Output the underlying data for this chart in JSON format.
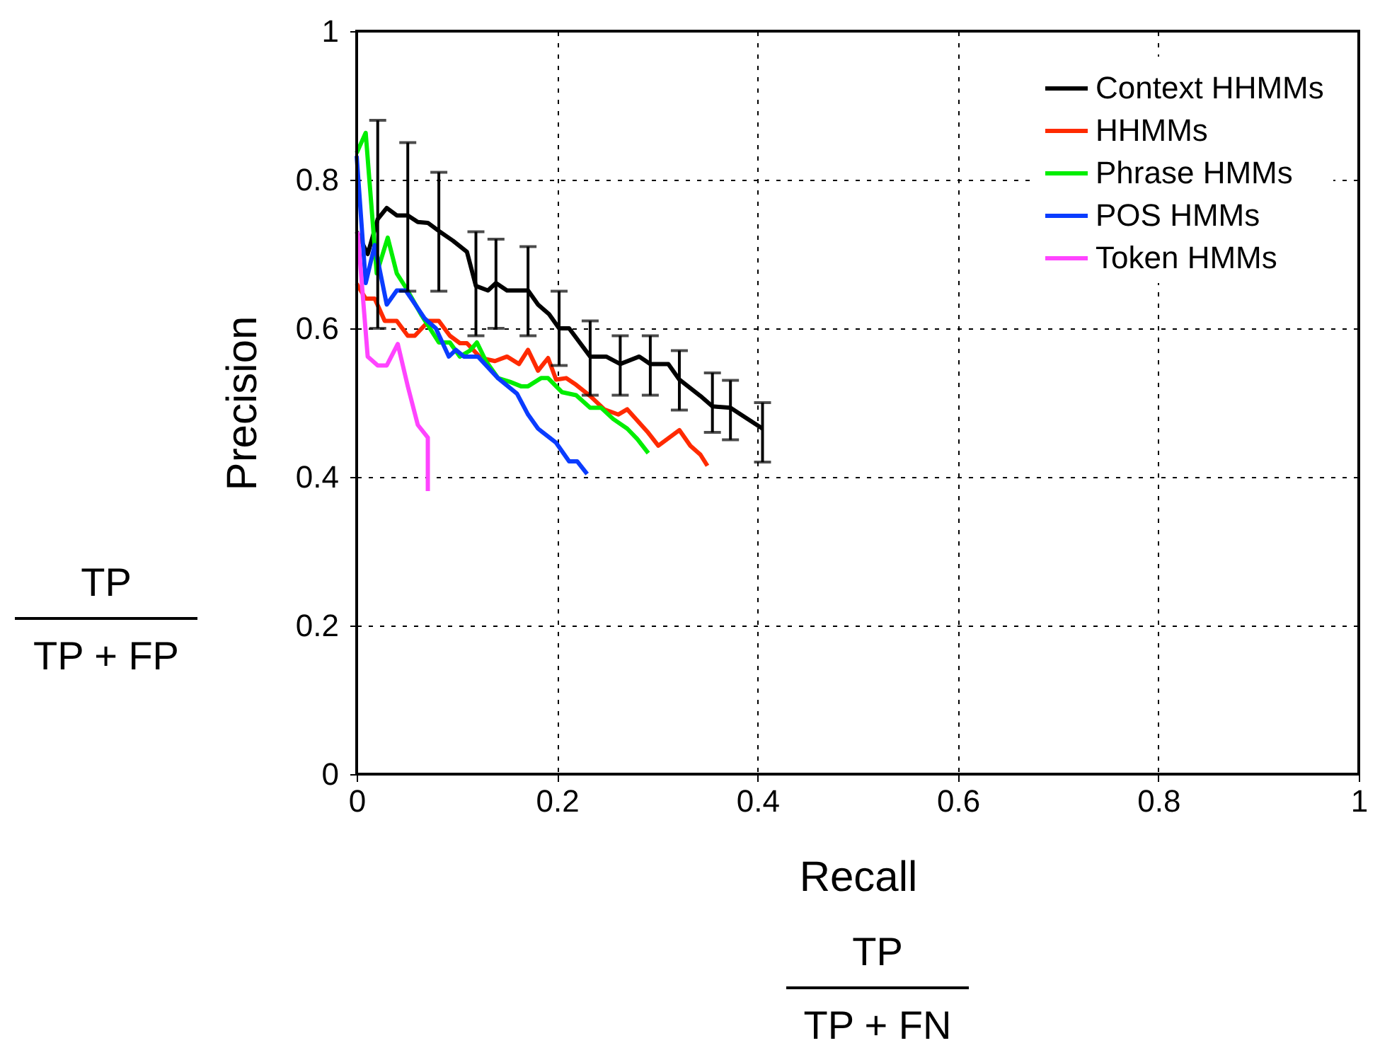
{
  "chart_data": {
    "type": "line",
    "xlabel": "Recall",
    "ylabel": "Precision",
    "annotations": [
      "TP",
      "TP + FP",
      "TP",
      "TP + FN"
    ],
    "xlim": [
      0,
      1
    ],
    "ylim": [
      0,
      1
    ],
    "xticks": [
      0,
      0.2,
      0.4,
      0.6,
      0.8,
      1
    ],
    "yticks": [
      0,
      0.2,
      0.4,
      0.6,
      0.8,
      1
    ],
    "grid": true,
    "legend": "top right",
    "marker": "none",
    "line_style": "solid",
    "series": [
      {
        "name": "Context HHMMs",
        "color": "#000000",
        "x": [
          0,
          0.011,
          0.021,
          0.03,
          0.04,
          0.051,
          0.061,
          0.071,
          0.082,
          0.096,
          0.11,
          0.119,
          0.131,
          0.139,
          0.15,
          0.171,
          0.181,
          0.192,
          0.202,
          0.212,
          0.233,
          0.249,
          0.263,
          0.282,
          0.293,
          0.311,
          0.322,
          0.343,
          0.355,
          0.373,
          0.405
        ],
        "values": [
          0.73,
          0.7,
          0.747,
          0.762,
          0.752,
          0.752,
          0.743,
          0.742,
          0.731,
          0.718,
          0.703,
          0.657,
          0.651,
          0.661,
          0.651,
          0.651,
          0.632,
          0.619,
          0.6,
          0.6,
          0.562,
          0.562,
          0.552,
          0.562,
          0.552,
          0.552,
          0.531,
          0.509,
          0.495,
          0.493,
          0.465
        ],
        "errors": [
          null,
          null,
          [
            0.6,
            0.88
          ],
          null,
          null,
          [
            0.65,
            0.85
          ],
          null,
          null,
          [
            0.65,
            0.81
          ],
          null,
          null,
          [
            0.59,
            0.73
          ],
          null,
          [
            0.6,
            0.72
          ],
          null,
          [
            0.59,
            0.71
          ],
          null,
          null,
          [
            0.55,
            0.65
          ],
          null,
          [
            0.51,
            0.61
          ],
          null,
          [
            0.51,
            0.59
          ],
          null,
          [
            0.51,
            0.59
          ],
          null,
          [
            0.49,
            0.57
          ],
          null,
          [
            0.46,
            0.54
          ],
          [
            0.45,
            0.53
          ],
          [
            0.42,
            0.5
          ]
        ]
      },
      {
        "name": "HHMMs",
        "color": "#ff2a00",
        "x": [
          0,
          0.009,
          0.018,
          0.028,
          0.04,
          0.051,
          0.058,
          0.072,
          0.082,
          0.093,
          0.103,
          0.11,
          0.124,
          0.138,
          0.15,
          0.162,
          0.171,
          0.181,
          0.191,
          0.199,
          0.209,
          0.219,
          0.233,
          0.247,
          0.261,
          0.27,
          0.29,
          0.301,
          0.322,
          0.333,
          0.343,
          0.35
        ],
        "values": [
          0.66,
          0.64,
          0.64,
          0.61,
          0.61,
          0.59,
          0.59,
          0.61,
          0.61,
          0.59,
          0.58,
          0.58,
          0.56,
          0.556,
          0.562,
          0.552,
          0.571,
          0.543,
          0.56,
          0.531,
          0.533,
          0.524,
          0.509,
          0.491,
          0.484,
          0.491,
          0.461,
          0.442,
          0.463,
          0.442,
          0.43,
          0.415
        ]
      },
      {
        "name": "Phrase HMMs",
        "color": "#00ee00",
        "x": [
          0,
          0.009,
          0.02,
          0.031,
          0.04,
          0.049,
          0.065,
          0.082,
          0.093,
          0.103,
          0.113,
          0.12,
          0.129,
          0.141,
          0.153,
          0.164,
          0.171,
          0.184,
          0.191,
          0.205,
          0.219,
          0.233,
          0.244,
          0.256,
          0.27,
          0.28,
          0.291
        ],
        "values": [
          0.836,
          0.863,
          0.674,
          0.722,
          0.674,
          0.655,
          0.617,
          0.581,
          0.581,
          0.562,
          0.57,
          0.581,
          0.556,
          0.533,
          0.528,
          0.522,
          0.522,
          0.533,
          0.533,
          0.514,
          0.51,
          0.493,
          0.493,
          0.478,
          0.465,
          0.451,
          0.432
        ]
      },
      {
        "name": "POS HMMs",
        "color": "#0a3cff",
        "x": [
          0,
          0.009,
          0.018,
          0.03,
          0.04,
          0.049,
          0.068,
          0.079,
          0.092,
          0.099,
          0.107,
          0.121,
          0.141,
          0.16,
          0.171,
          0.181,
          0.199,
          0.212,
          0.22,
          0.23
        ],
        "values": [
          0.832,
          0.661,
          0.712,
          0.632,
          0.651,
          0.651,
          0.613,
          0.6,
          0.562,
          0.571,
          0.562,
          0.562,
          0.533,
          0.512,
          0.484,
          0.465,
          0.446,
          0.421,
          0.421,
          0.404
        ]
      },
      {
        "name": "Token HMMs",
        "color": "#ff44ff",
        "x": [
          0.001,
          0.011,
          0.021,
          0.03,
          0.041,
          0.051,
          0.061,
          0.071,
          0.071
        ],
        "values": [
          0.73,
          0.562,
          0.55,
          0.55,
          0.579,
          0.522,
          0.47,
          0.453,
          0.381
        ]
      }
    ]
  }
}
